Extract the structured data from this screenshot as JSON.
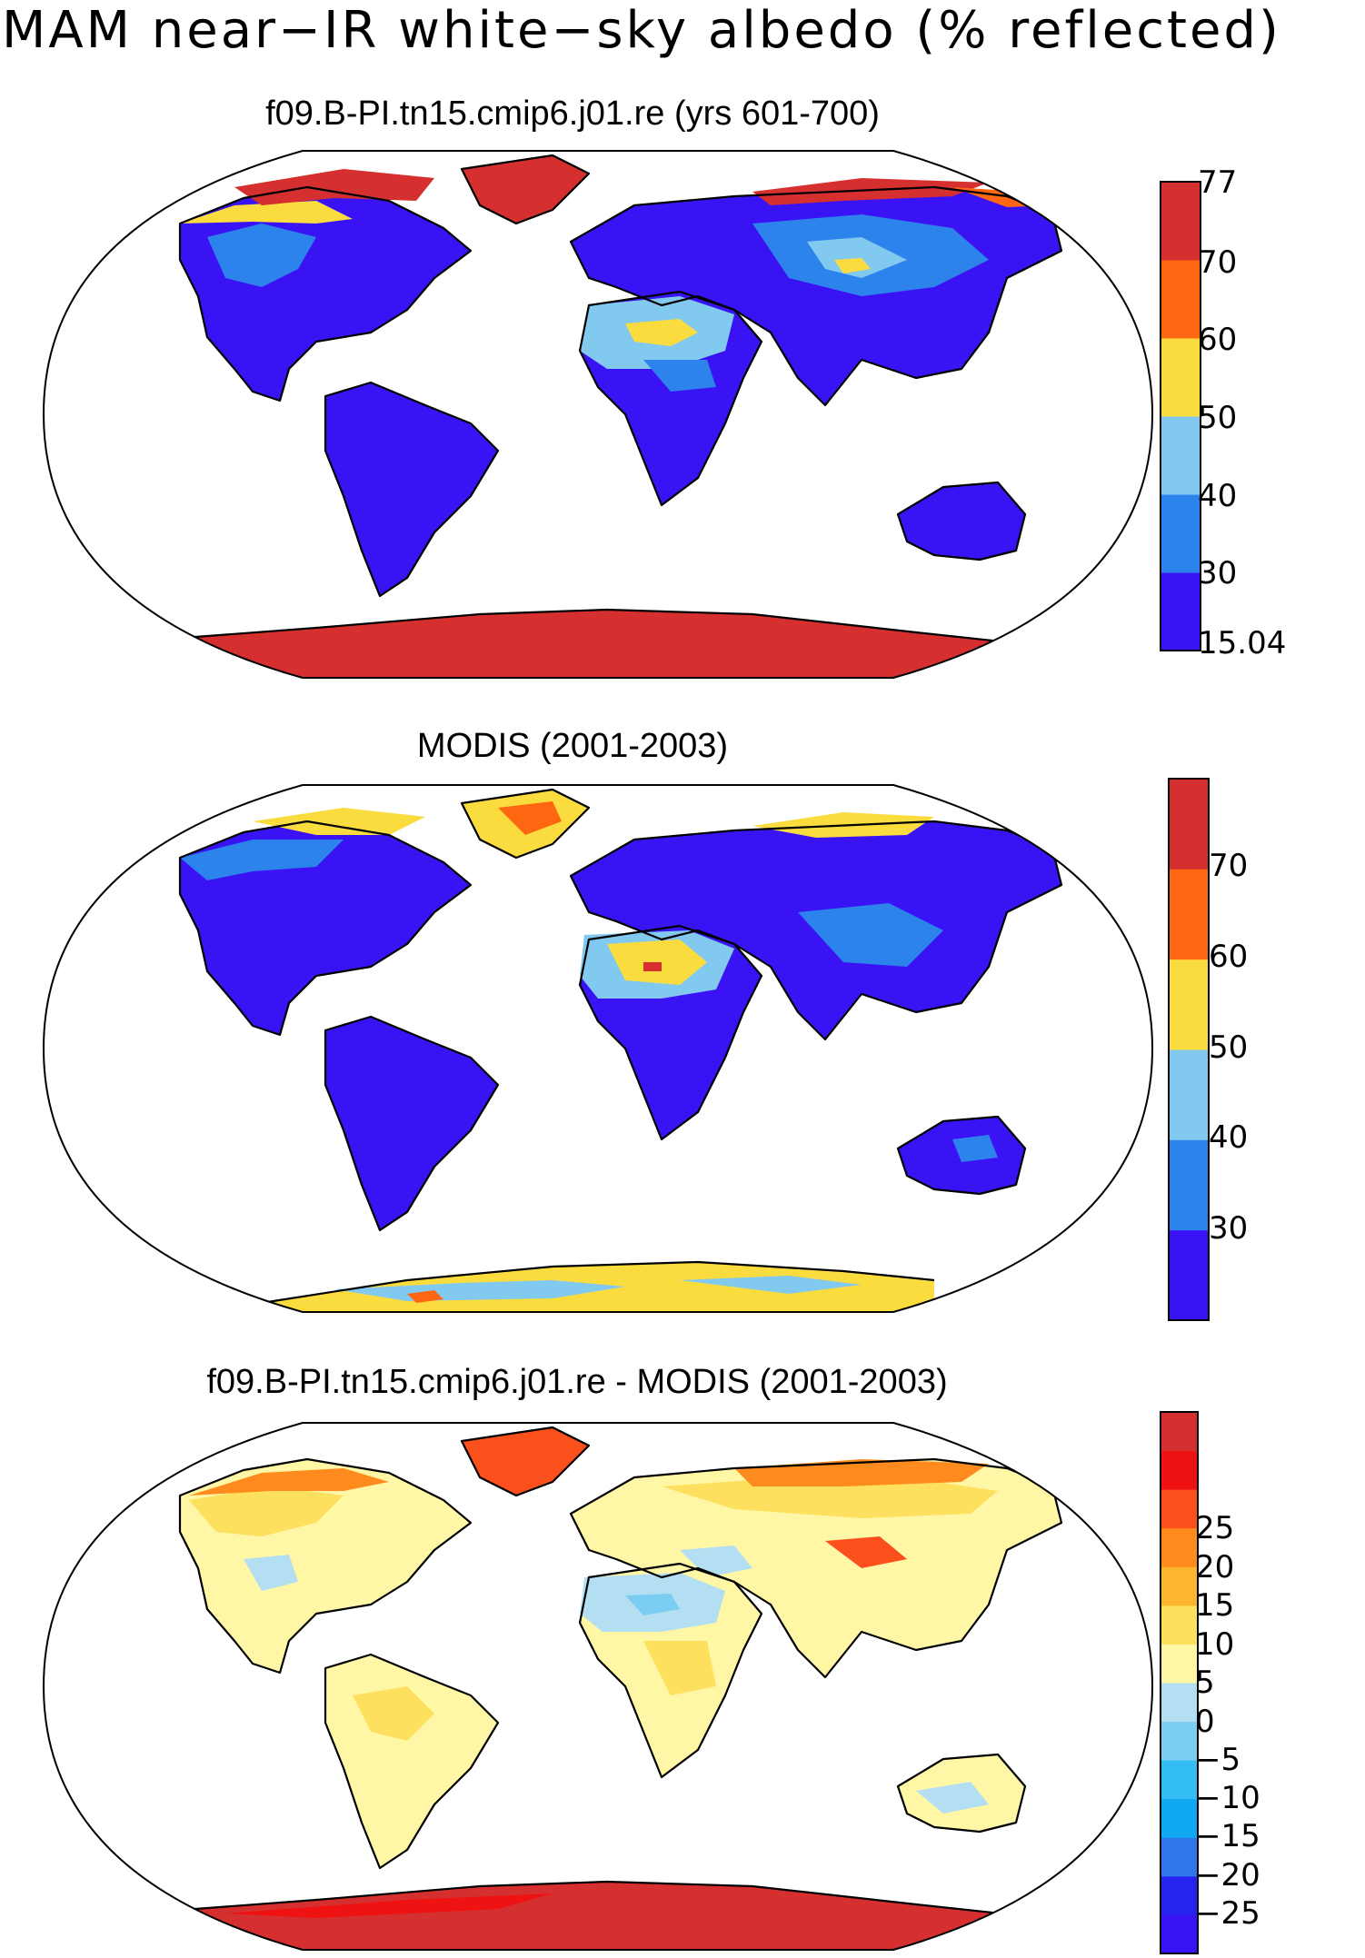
{
  "figure": {
    "title": "MAM near−IR white−sky albedo (% reflected)"
  },
  "panels": [
    {
      "id": "model",
      "title": "f09.B-PI.tn15.cmip6.j01.re (yrs 601-700)",
      "colorbar": {
        "colors": [
          "#3a13f5",
          "#2d83ec",
          "#82c9ef",
          "#fbdc3f",
          "#ff6611",
          "#d62f2f"
        ],
        "tick_labels": [
          "15.04",
          "30",
          "40",
          "50",
          "60",
          "70",
          "77"
        ]
      }
    },
    {
      "id": "obs",
      "title": "MODIS (2001-2003)",
      "colorbar": {
        "colors": [
          "#3a13f5",
          "#2d83ec",
          "#82c9ef",
          "#fbdc3f",
          "#ff6611",
          "#d62f2f"
        ],
        "tick_labels": [
          "30",
          "40",
          "50",
          "60",
          "70"
        ]
      }
    },
    {
      "id": "diff",
      "title": "f09.B-PI.tn15.cmip6.j01.re - MODIS (2001-2003)",
      "colorbar": {
        "colors": [
          "#3a13f5",
          "#2424ee",
          "#2e77ea",
          "#10a8f0",
          "#33bdf2",
          "#7ccdf2",
          "#b4dff2",
          "#fff7a6",
          "#fde05e",
          "#fdb42e",
          "#ff8b1e",
          "#fb4f1c",
          "#ee1212",
          "#d62f2f"
        ],
        "tick_labels": [
          "−25",
          "−20",
          "−15",
          "−10",
          "−5",
          "0",
          "5",
          "10",
          "15",
          "20",
          "25"
        ]
      }
    }
  ]
}
